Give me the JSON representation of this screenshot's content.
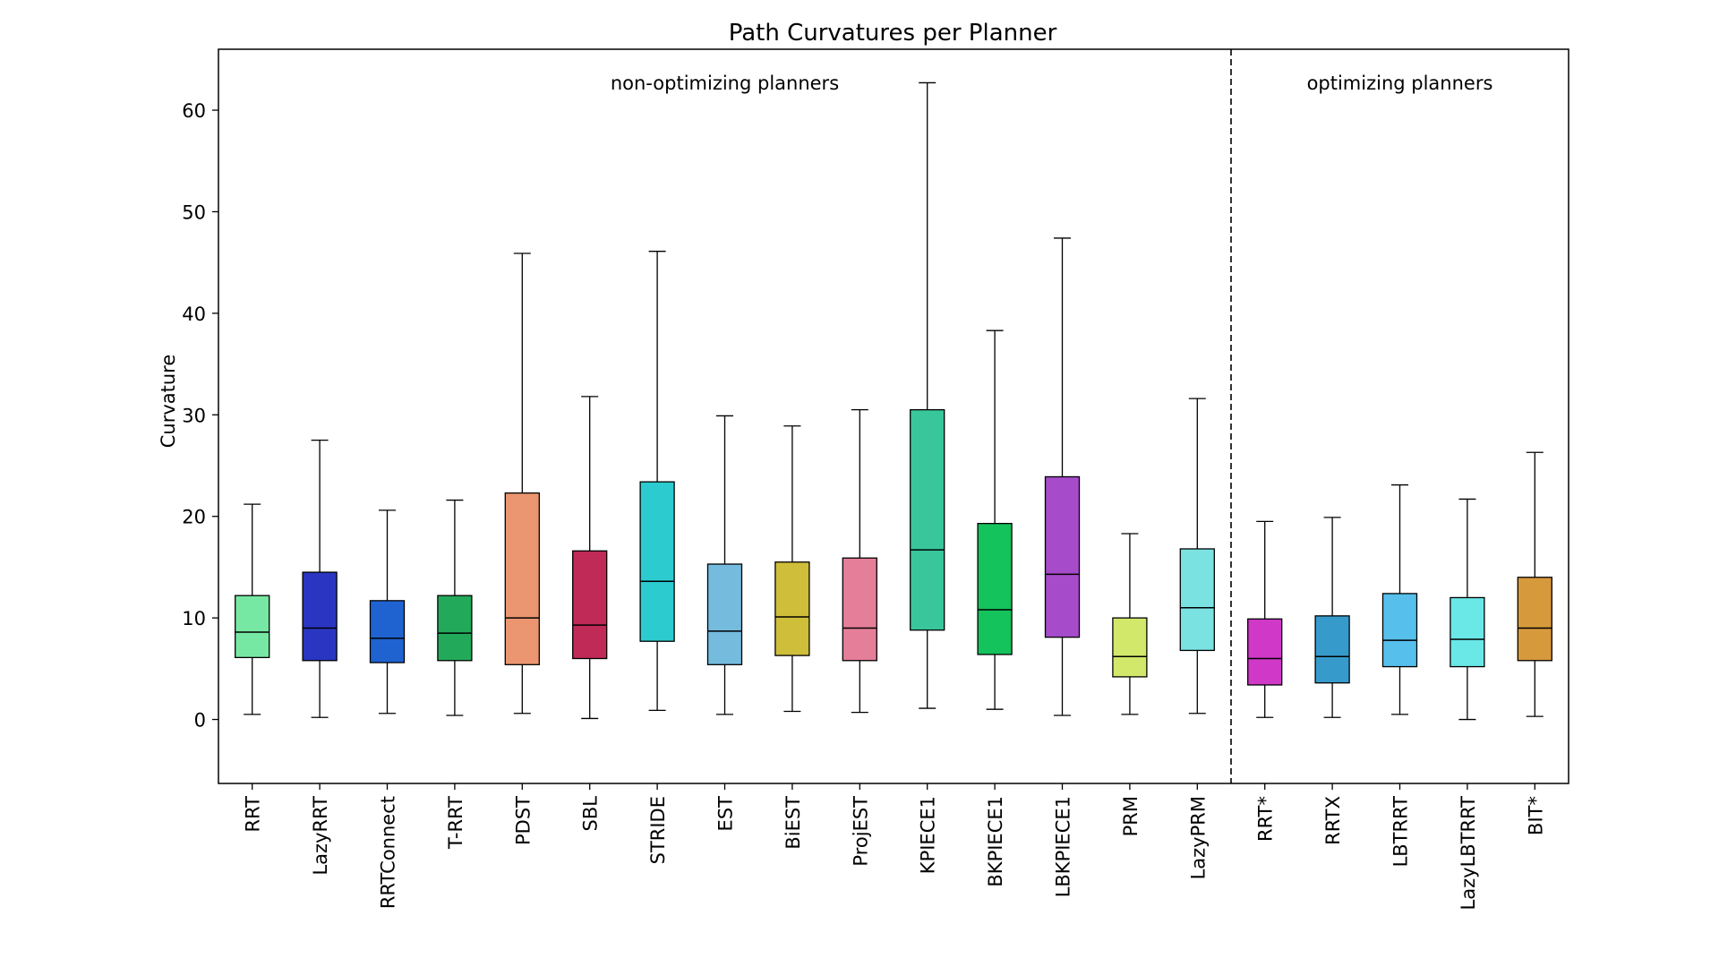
{
  "chart_data": {
    "type": "boxplot",
    "title": "Path Curvatures per Planner",
    "xlabel": "",
    "ylabel": "Curvature",
    "ylim": [
      -6.3,
      66
    ],
    "yticks": [
      0,
      10,
      20,
      30,
      40,
      50,
      60
    ],
    "grid": false,
    "groups": [
      {
        "label": "non-optimizing planners",
        "count": 15
      },
      {
        "label": "optimizing planners",
        "count": 5
      }
    ],
    "categories": [
      "RRT",
      "LazyRRT",
      "RRTConnect",
      "T-RRT",
      "PDST",
      "SBL",
      "STRIDE",
      "EST",
      "BiEST",
      "ProjEST",
      "KPIECE1",
      "BKPIECE1",
      "LBKPIECE1",
      "PRM",
      "LazyPRM",
      "RRT*",
      "RRTX",
      "LBTRRT",
      "LazyLBTRRT",
      "BIT*"
    ],
    "colors": [
      "#77e8a4",
      "#2a36c2",
      "#1f63d1",
      "#22aa5a",
      "#eb9670",
      "#c02a56",
      "#2ccbd0",
      "#74bbde",
      "#cebe3a",
      "#e57e99",
      "#39c69a",
      "#14c35c",
      "#a64bc9",
      "#d1e86a",
      "#7be2e2",
      "#d038c7",
      "#369bcb",
      "#56bfec",
      "#6ae7e7",
      "#d6993c"
    ],
    "boxes": [
      {
        "whislo": 0.5,
        "q1": 6.1,
        "med": 8.6,
        "q3": 12.2,
        "whishi": 21.2
      },
      {
        "whislo": 0.2,
        "q1": 5.8,
        "med": 9.0,
        "q3": 14.5,
        "whishi": 27.5
      },
      {
        "whislo": 0.6,
        "q1": 5.6,
        "med": 8.0,
        "q3": 11.7,
        "whishi": 20.6
      },
      {
        "whislo": 0.4,
        "q1": 5.8,
        "med": 8.5,
        "q3": 12.2,
        "whishi": 21.6
      },
      {
        "whislo": 0.6,
        "q1": 5.4,
        "med": 10.0,
        "q3": 22.3,
        "whishi": 45.9
      },
      {
        "whislo": 0.1,
        "q1": 6.0,
        "med": 9.3,
        "q3": 16.6,
        "whishi": 31.8
      },
      {
        "whislo": 0.9,
        "q1": 7.7,
        "med": 13.6,
        "q3": 23.4,
        "whishi": 46.1
      },
      {
        "whislo": 0.5,
        "q1": 5.4,
        "med": 8.7,
        "q3": 15.3,
        "whishi": 29.9
      },
      {
        "whislo": 0.8,
        "q1": 6.3,
        "med": 10.1,
        "q3": 15.5,
        "whishi": 28.9
      },
      {
        "whislo": 0.7,
        "q1": 5.8,
        "med": 9.0,
        "q3": 15.9,
        "whishi": 30.5
      },
      {
        "whislo": 1.1,
        "q1": 8.8,
        "med": 16.7,
        "q3": 30.5,
        "whishi": 62.7
      },
      {
        "whislo": 1.0,
        "q1": 6.4,
        "med": 10.8,
        "q3": 19.3,
        "whishi": 38.3
      },
      {
        "whislo": 0.4,
        "q1": 8.1,
        "med": 14.3,
        "q3": 23.9,
        "whishi": 47.4
      },
      {
        "whislo": 0.5,
        "q1": 4.2,
        "med": 6.2,
        "q3": 10.0,
        "whishi": 18.3
      },
      {
        "whislo": 0.6,
        "q1": 6.8,
        "med": 11.0,
        "q3": 16.8,
        "whishi": 31.6
      },
      {
        "whislo": 0.2,
        "q1": 3.4,
        "med": 6.0,
        "q3": 9.9,
        "whishi": 19.5
      },
      {
        "whislo": 0.2,
        "q1": 3.6,
        "med": 6.2,
        "q3": 10.2,
        "whishi": 19.9
      },
      {
        "whislo": 0.5,
        "q1": 5.2,
        "med": 7.8,
        "q3": 12.4,
        "whishi": 23.1
      },
      {
        "whislo": 0.0,
        "q1": 5.2,
        "med": 7.9,
        "q3": 12.0,
        "whishi": 21.7
      },
      {
        "whislo": 0.3,
        "q1": 5.8,
        "med": 9.0,
        "q3": 14.0,
        "whishi": 26.3
      }
    ]
  }
}
